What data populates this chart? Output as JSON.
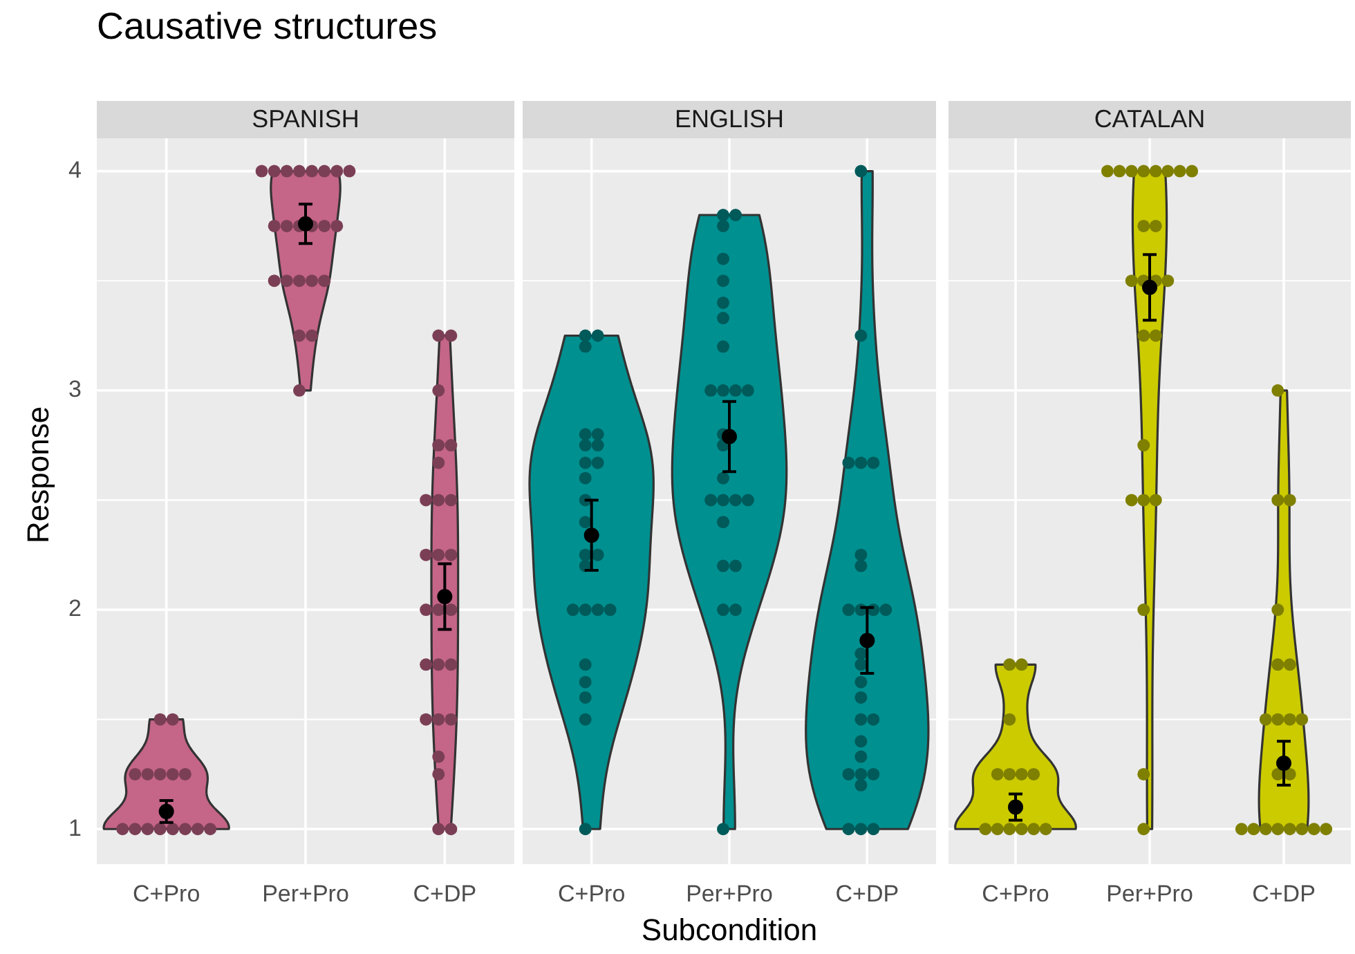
{
  "chart_data": [
    {
      "type": "scatter",
      "title": "Causative structures",
      "subtitle": "SPANISH",
      "ylabel": "Response",
      "categories": [
        "C+Pro",
        "Per+Pro",
        "C+DP"
      ],
      "ylim": [
        0.84,
        4.15
      ],
      "yticks": [
        1,
        2,
        3,
        4
      ],
      "grid": true,
      "legend": false,
      "marker": "circle",
      "series": [
        {
          "color": "#7b3f55",
          "x": [
            "C+Pro",
            "C+Pro",
            "C+Pro",
            "C+Pro",
            "C+Pro",
            "C+Pro",
            "C+Pro",
            "C+Pro",
            "C+Pro",
            "C+Pro",
            "C+Pro",
            "C+Pro",
            "C+Pro",
            "C+Pro",
            "C+Pro",
            "Per+Pro",
            "Per+Pro",
            "Per+Pro",
            "Per+Pro",
            "Per+Pro",
            "Per+Pro",
            "Per+Pro",
            "Per+Pro",
            "Per+Pro",
            "Per+Pro",
            "Per+Pro",
            "Per+Pro",
            "Per+Pro",
            "Per+Pro",
            "Per+Pro",
            "Per+Pro",
            "Per+Pro",
            "Per+Pro",
            "Per+Pro",
            "Per+Pro",
            "Per+Pro",
            "Per+Pro",
            "C+DP",
            "C+DP",
            "C+DP",
            "C+DP",
            "C+DP",
            "C+DP",
            "C+DP",
            "C+DP",
            "C+DP",
            "C+DP",
            "C+DP",
            "C+DP",
            "C+DP",
            "C+DP",
            "C+DP",
            "C+DP",
            "C+DP",
            "C+DP",
            "C+DP",
            "C+DP",
            "C+DP",
            "C+DP",
            "C+DP",
            "C+DP",
            "C+DP"
          ],
          "values": [
            1,
            1,
            1,
            1,
            1,
            1,
            1,
            1,
            1.25,
            1.25,
            1.25,
            1.25,
            1.25,
            1.5,
            1.5,
            4,
            4,
            4,
            4,
            4,
            4,
            4,
            4,
            3.75,
            3.75,
            3.75,
            3.75,
            3.75,
            3.75,
            3.5,
            3.5,
            3.5,
            3.5,
            3.5,
            3.25,
            3.25,
            3,
            3.25,
            3.25,
            3,
            2.75,
            2.75,
            2.67,
            2.5,
            2.5,
            2.5,
            2.25,
            2.25,
            2.25,
            2,
            2,
            2,
            1.75,
            1.75,
            1.75,
            1.5,
            1.5,
            1.5,
            1.33,
            1.25,
            1,
            1
          ]
        },
        {
          "color": "#000000",
          "x": [
            "C+Pro",
            "Per+Pro",
            "C+DP"
          ],
          "values": [
            1.08,
            3.76,
            2.06
          ],
          "errors": [
            [
              1.03,
              1.13
            ],
            [
              3.67,
              3.85
            ],
            [
              1.91,
              2.21
            ]
          ]
        }
      ]
    },
    {
      "type": "scatter",
      "subtitle": "ENGLISH",
      "xlabel": "Subcondition",
      "categories": [
        "C+Pro",
        "Per+Pro",
        "C+DP"
      ],
      "ylim": [
        0.84,
        4.15
      ],
      "yticks": [
        1,
        2,
        3,
        4
      ],
      "grid": true,
      "legend": false,
      "marker": "circle",
      "tick_labels": "x",
      "series": [
        {
          "color": "#005a5a",
          "x": [
            "C+Pro",
            "C+Pro",
            "C+Pro",
            "C+Pro",
            "C+Pro",
            "C+Pro",
            "C+Pro",
            "C+Pro",
            "C+Pro",
            "C+Pro",
            "C+Pro",
            "C+Pro",
            "C+Pro",
            "C+Pro",
            "C+Pro",
            "C+Pro",
            "C+Pro",
            "C+Pro",
            "C+Pro",
            "C+Pro",
            "C+Pro",
            "C+Pro",
            "C+Pro",
            "C+Pro",
            "Per+Pro",
            "Per+Pro",
            "Per+Pro",
            "Per+Pro",
            "Per+Pro",
            "Per+Pro",
            "Per+Pro",
            "Per+Pro",
            "Per+Pro",
            "Per+Pro",
            "Per+Pro",
            "Per+Pro",
            "Per+Pro",
            "Per+Pro",
            "Per+Pro",
            "Per+Pro",
            "Per+Pro",
            "Per+Pro",
            "Per+Pro",
            "Per+Pro",
            "Per+Pro",
            "Per+Pro",
            "Per+Pro",
            "Per+Pro",
            "Per+Pro",
            "C+DP",
            "C+DP",
            "C+DP",
            "C+DP",
            "C+DP",
            "C+DP",
            "C+DP",
            "C+DP",
            "C+DP",
            "C+DP",
            "C+DP",
            "C+DP",
            "C+DP",
            "C+DP",
            "C+DP",
            "C+DP",
            "C+DP",
            "C+DP",
            "C+DP",
            "C+DP",
            "C+DP",
            "C+DP",
            "C+DP",
            "C+DP",
            "C+DP",
            "C+DP"
          ],
          "values": [
            3.25,
            3.25,
            3.2,
            2.8,
            2.8,
            2.75,
            2.75,
            2.67,
            2.67,
            2.6,
            2.5,
            2.4,
            2.25,
            2.25,
            2.2,
            2,
            2,
            2,
            2,
            1.75,
            1.67,
            1.6,
            1.5,
            1,
            3.8,
            3.8,
            3.75,
            3.6,
            3.5,
            3.4,
            3.33,
            3.2,
            3,
            3,
            3,
            3,
            2.8,
            2.75,
            2.6,
            2.5,
            2.5,
            2.5,
            2.5,
            2.4,
            2.2,
            2.2,
            2,
            2,
            1,
            4,
            3.25,
            2.67,
            2.67,
            2.67,
            2.25,
            2.2,
            2,
            2,
            2,
            2,
            1.8,
            1.75,
            1.67,
            1.6,
            1.5,
            1.5,
            1.4,
            1.33,
            1.25,
            1.25,
            1.25,
            1.2,
            1,
            1,
            1
          ]
        },
        {
          "color": "#000000",
          "x": [
            "C+Pro",
            "Per+Pro",
            "C+DP"
          ],
          "values": [
            2.34,
            2.79,
            1.86
          ],
          "errors": [
            [
              2.18,
              2.5
            ],
            [
              2.63,
              2.95
            ],
            [
              1.71,
              2.01
            ]
          ]
        }
      ]
    },
    {
      "type": "scatter",
      "subtitle": "CATALAN",
      "categories": [
        "C+Pro",
        "Per+Pro",
        "C+DP"
      ],
      "ylim": [
        0.84,
        4.15
      ],
      "yticks": [
        1,
        2,
        3,
        4
      ],
      "grid": true,
      "legend": false,
      "marker": "circle",
      "tick_labels": "x",
      "series": [
        {
          "color": "#7f7f00",
          "x": [
            "C+Pro",
            "C+Pro",
            "C+Pro",
            "C+Pro",
            "C+Pro",
            "C+Pro",
            "C+Pro",
            "C+Pro",
            "C+Pro",
            "C+Pro",
            "C+Pro",
            "C+Pro",
            "C+Pro",
            "Per+Pro",
            "Per+Pro",
            "Per+Pro",
            "Per+Pro",
            "Per+Pro",
            "Per+Pro",
            "Per+Pro",
            "Per+Pro",
            "Per+Pro",
            "Per+Pro",
            "Per+Pro",
            "Per+Pro",
            "Per+Pro",
            "Per+Pro",
            "Per+Pro",
            "Per+Pro",
            "Per+Pro",
            "Per+Pro",
            "Per+Pro",
            "Per+Pro",
            "Per+Pro",
            "Per+Pro",
            "Per+Pro",
            "C+DP",
            "C+DP",
            "C+DP",
            "C+DP",
            "C+DP",
            "C+DP",
            "C+DP",
            "C+DP",
            "C+DP",
            "C+DP",
            "C+DP",
            "C+DP",
            "C+DP",
            "C+DP",
            "C+DP",
            "C+DP",
            "C+DP",
            "C+DP",
            "C+DP",
            "C+DP"
          ],
          "values": [
            1.75,
            1.75,
            1.5,
            1.25,
            1.25,
            1.25,
            1.25,
            1,
            1,
            1,
            1,
            1,
            1,
            4,
            4,
            4,
            4,
            4,
            4,
            4,
            4,
            3.75,
            3.75,
            3.5,
            3.5,
            3.5,
            3.5,
            3.25,
            3.25,
            2.75,
            2.5,
            2.5,
            2.5,
            2,
            1.25,
            1,
            3,
            2.5,
            2.5,
            2,
            1.75,
            1.75,
            1.5,
            1.5,
            1.5,
            1.5,
            1.25,
            1.25,
            1,
            1,
            1,
            1,
            1,
            1,
            1,
            1
          ]
        },
        {
          "color": "#000000",
          "x": [
            "C+Pro",
            "Per+Pro",
            "C+DP"
          ],
          "values": [
            1.1,
            3.47,
            1.3
          ],
          "errors": [
            [
              1.04,
              1.16
            ],
            [
              3.32,
              3.62
            ],
            [
              1.2,
              1.4
            ]
          ]
        }
      ]
    }
  ]
}
